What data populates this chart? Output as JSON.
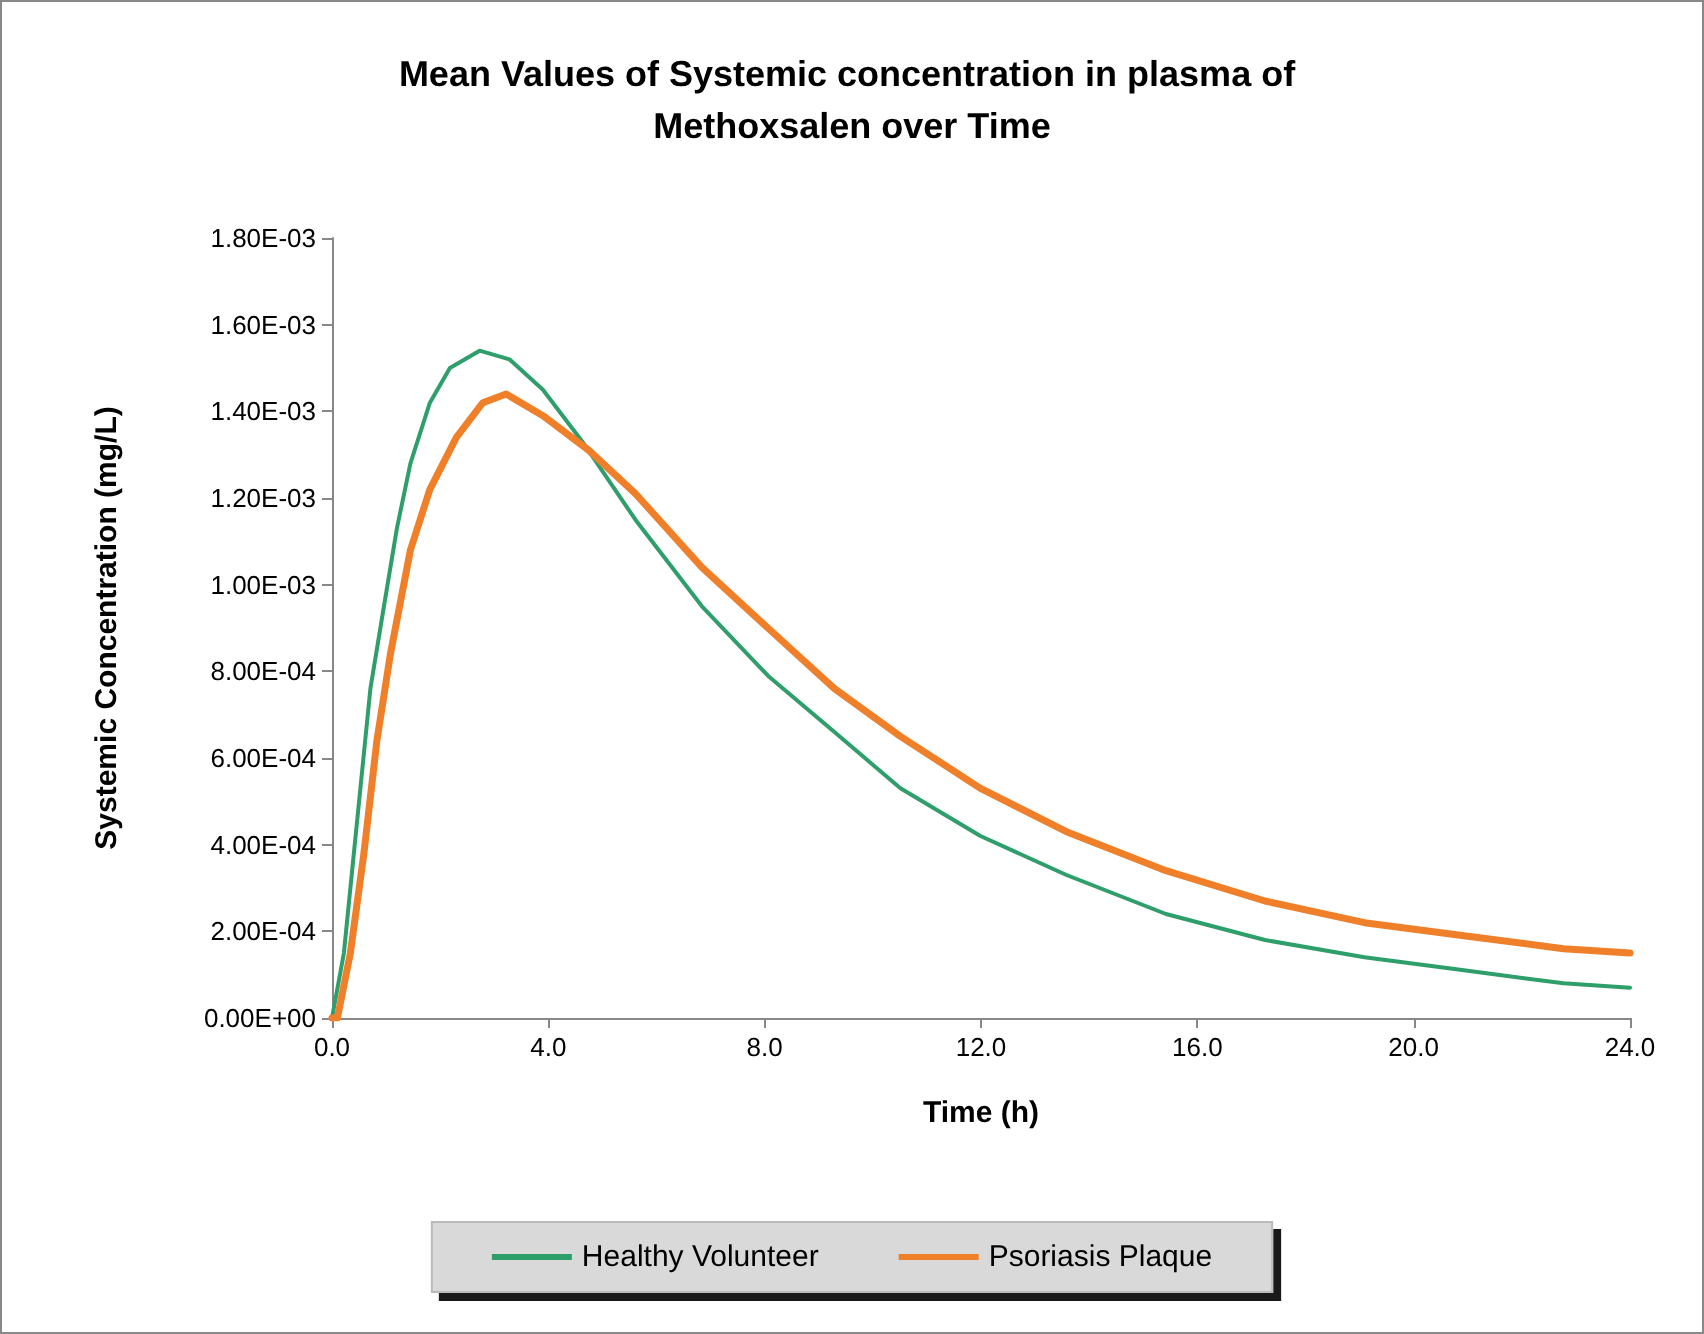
{
  "chart_data": {
    "type": "line",
    "title": "Mean Values of Systemic concentration in plasma of Methoxsalen over Time",
    "xlabel": "Time (h)",
    "ylabel": "Systemic Concentration (mg/L)",
    "xlim": [
      0,
      24
    ],
    "xticks": [
      {
        "value": 0,
        "label": "0.0"
      },
      {
        "value": 4,
        "label": "4.0"
      },
      {
        "value": 8,
        "label": "8.0"
      },
      {
        "value": 12,
        "label": "12.0"
      },
      {
        "value": 16,
        "label": "16.0"
      },
      {
        "value": 20,
        "label": "20.0"
      },
      {
        "value": 24,
        "label": "24.0"
      }
    ],
    "ylim": [
      0,
      0.0018
    ],
    "yticks": [
      {
        "value": 0,
        "label": "0.00E+00"
      },
      {
        "value": 0.0002,
        "label": "2.00E-04"
      },
      {
        "value": 0.0004,
        "label": "4.00E-04"
      },
      {
        "value": 0.0006,
        "label": "6.00E-04"
      },
      {
        "value": 0.0008,
        "label": "8.00E-04"
      },
      {
        "value": 0.001,
        "label": "1.00E-03"
      },
      {
        "value": 0.0012,
        "label": "1.20E-03"
      },
      {
        "value": 0.0014,
        "label": "1.40E-03"
      },
      {
        "value": 0.0016,
        "label": "1.60E-03"
      },
      {
        "value": 0.0018,
        "label": "1.80E-03"
      }
    ],
    "grid": false,
    "legend": "bottom",
    "marker": "none",
    "line_style": "solid",
    "series": [
      {
        "name": "Healthy Volunteer",
        "color": "#2e9e6a",
        "x": [
          0,
          0.22,
          0.34,
          0.71,
          0.96,
          1.2,
          1.45,
          1.81,
          2.18,
          2.73,
          3.28,
          3.9,
          4.63,
          5.61,
          6.84,
          8.06,
          9.29,
          10.51,
          11.99,
          13.58,
          15.42,
          17.25,
          19.09,
          20.93,
          22.77,
          24
        ],
        "values": [
          0,
          0.00015,
          0.0003,
          0.00076,
          0.00095,
          0.00113,
          0.00128,
          0.00142,
          0.0015,
          0.00154,
          0.00152,
          0.00145,
          0.00133,
          0.00115,
          0.00095,
          0.00079,
          0.00066,
          0.00053,
          0.00042,
          0.00033,
          0.00024,
          0.00018,
          0.00014,
          0.00011,
          8e-05,
          7e-05
        ]
      },
      {
        "name": "Psoriasis Plaque",
        "color": "#f07f2a",
        "x": [
          0,
          0.1,
          0.34,
          0.59,
          0.83,
          1.08,
          1.45,
          1.81,
          2.3,
          2.79,
          3.22,
          3.9,
          4.75,
          5.61,
          6.84,
          8.06,
          9.29,
          10.51,
          11.99,
          13.58,
          15.42,
          17.25,
          19.09,
          20.93,
          22.77,
          24
        ],
        "values": [
          0,
          0,
          0.00015,
          0.00038,
          0.00064,
          0.00084,
          0.00108,
          0.00122,
          0.00134,
          0.00142,
          0.00144,
          0.00139,
          0.00131,
          0.00121,
          0.00104,
          0.0009,
          0.00076,
          0.00065,
          0.00053,
          0.00043,
          0.00034,
          0.00027,
          0.00022,
          0.00019,
          0.00016,
          0.00015
        ]
      }
    ]
  }
}
